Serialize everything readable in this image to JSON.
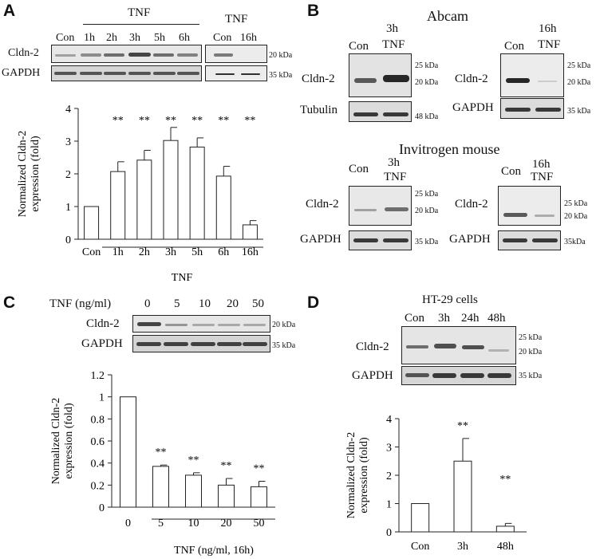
{
  "panels": {
    "a": {
      "letter": "A",
      "tnf_header": "TNF",
      "tnf_header_2": "TNF",
      "lanes": [
        "Con",
        "1h",
        "2h",
        "3h",
        "5h",
        "6h"
      ],
      "lanes_2": [
        "Con",
        "16h"
      ],
      "row_labels": [
        "Cldn-2",
        "GAPDH"
      ],
      "markers": [
        "20 kDa",
        "35 kDa"
      ]
    },
    "b": {
      "letter": "B",
      "abcam": "Abcam",
      "invitrogen": "Invitrogen mouse",
      "con": "Con",
      "h3": "3h",
      "h16": "16h",
      "tnf": "TNF",
      "cldn2": "Cldn-2",
      "tubulin": "Tubulin",
      "gapdh": "GAPDH",
      "kda25": "25 kDa",
      "kda20": "20 kDa",
      "kda48": "48 kDa",
      "kda35": "35 kDa",
      "kda35b": "35kDa"
    },
    "c": {
      "letter": "C",
      "header": "TNF (ng/ml)",
      "lanes": [
        "0",
        "5",
        "10",
        "20",
        "50"
      ],
      "row_labels": [
        "Cldn-2",
        "GAPDH"
      ],
      "markers": [
        "20 kDa",
        "35 kDa"
      ]
    },
    "d": {
      "letter": "D",
      "title": "HT-29 cells",
      "lanes": [
        "Con",
        "3h",
        "24h",
        "48h"
      ],
      "row_labels": [
        "Cldn-2",
        "GAPDH"
      ],
      "markers": [
        "25 kDa",
        "20 kDa",
        "35 kDa"
      ]
    }
  },
  "chart_data": [
    {
      "type": "bar",
      "panel": "A",
      "categories": [
        "Con",
        "1h",
        "2h",
        "3h",
        "5h",
        "6h",
        "16h"
      ],
      "values": [
        1.0,
        2.07,
        2.42,
        3.02,
        2.82,
        1.93,
        0.44
      ],
      "errors": [
        0,
        0.3,
        0.3,
        0.4,
        0.28,
        0.3,
        0.13
      ],
      "significance": [
        "",
        "**",
        "**",
        "**",
        "**",
        "**",
        "**"
      ],
      "ylabel": "Normalized Cldn-2 expression (fold)",
      "xlabel": "TNF",
      "yticks": [
        "0",
        "1",
        "2",
        "3",
        "4"
      ],
      "ylim": [
        0,
        4
      ]
    },
    {
      "type": "bar",
      "panel": "C",
      "categories": [
        "0",
        "5",
        "10",
        "20",
        "50"
      ],
      "values": [
        1.0,
        0.37,
        0.29,
        0.2,
        0.185
      ],
      "errors": [
        0,
        0.012,
        0.022,
        0.06,
        0.05
      ],
      "significance": [
        "",
        "**",
        "**",
        "**",
        "**"
      ],
      "ylabel": "Normalized Cldn-2 expression (fold)",
      "xlabel": "TNF (ng/ml, 16h)",
      "yticks": [
        "0",
        "0.2",
        "0.4",
        "0.6",
        "0.8",
        "1",
        "1.2"
      ],
      "ylim": [
        0,
        1.2
      ]
    },
    {
      "type": "bar",
      "panel": "D",
      "categories": [
        "Con",
        "3h",
        "48h"
      ],
      "values": [
        1.0,
        2.5,
        0.2
      ],
      "errors": [
        0,
        0.8,
        0.1
      ],
      "significance": [
        "",
        "**",
        "**"
      ],
      "ylabel": "Normalized Cldn-2 expression (fold)",
      "xlabel": "",
      "yticks": [
        "0",
        "1",
        "2",
        "3",
        "4"
      ],
      "ylim": [
        0,
        4
      ]
    }
  ]
}
